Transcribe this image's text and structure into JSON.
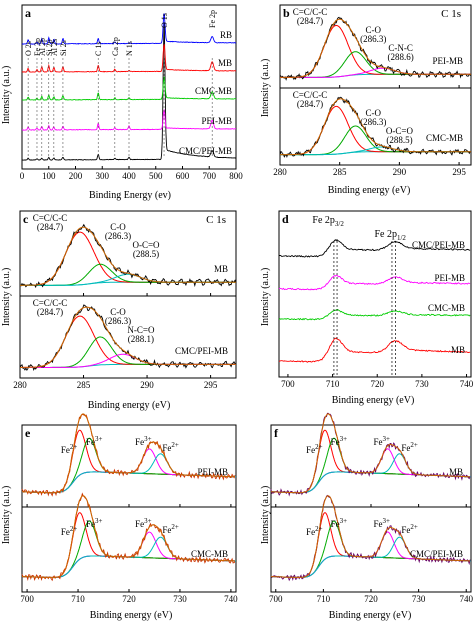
{
  "figure": {
    "axis_labels": {
      "intensity": "Intensity (a.u.)",
      "binding_energy_ev": "Binding Energy (ev)",
      "binding_energy_eV": "Binding energy (eV)"
    }
  },
  "chart_data": [
    {
      "id": "a",
      "panel_label": "a",
      "type": "line",
      "xlabel": "Binding Energy (ev)",
      "ylabel": "Intensity (a.u.)",
      "xlim": [
        0,
        800
      ],
      "xticks": [
        0,
        100,
        200,
        300,
        400,
        500,
        600,
        700,
        800
      ],
      "peak_labels": [
        {
          "x": 531,
          "text": "O 1s"
        },
        {
          "x": 711,
          "text": "Fe 2p"
        },
        {
          "x": 23,
          "text": "O 2s"
        },
        {
          "x": 56,
          "text": "Fe 3p"
        },
        {
          "x": 74,
          "text": "Al 2p"
        },
        {
          "x": 100,
          "text": "Si 2p"
        },
        {
          "x": 119,
          "text": "Al 2s"
        },
        {
          "x": 153,
          "text": "Si 2s"
        },
        {
          "x": 285,
          "text": "C 1s"
        },
        {
          "x": 347,
          "text": "Ca 2p"
        },
        {
          "x": 400,
          "text": "N 1s"
        }
      ],
      "series": [
        {
          "name": "CMC/PEI-MB",
          "color": "#000000",
          "offset": 4,
          "profile": {
            "O 1s": 11,
            "Fe 2p": 0.55,
            "C 1s": 0.45,
            "N 1s": 0.2,
            "Si 2p": 0.2,
            "Si 2s": 0.2,
            "Al 2p": 0.15,
            "Al 2s": 0.15,
            "Ca 2p": 0.1,
            "O 2s": 0.15,
            "Fe 3p": 0.1
          }
        },
        {
          "name": "PEI-MB",
          "color": "#ff00ff",
          "offset": 3,
          "profile": {
            "O 1s": 1.6,
            "Fe 2p": 0.7,
            "C 1s": 0.55,
            "N 1s": 0.3,
            "Si 2p": 0.35,
            "Si 2s": 0.3,
            "Al 2p": 0.3,
            "Al 2s": 0.25,
            "Ca 2p": 0.15,
            "O 2s": 0.25,
            "Fe 3p": 0.15
          }
        },
        {
          "name": "CMC-MB",
          "color": "#00cc00",
          "offset": 2,
          "profile": {
            "O 1s": 1.8,
            "Fe 2p": 0.6,
            "C 1s": 0.6,
            "N 1s": 0.15,
            "Si 2p": 0.4,
            "Si 2s": 0.35,
            "Al 2p": 0.3,
            "Al 2s": 0.25,
            "Ca 2p": 0.15,
            "O 2s": 0.25,
            "Fe 3p": 0.15
          }
        },
        {
          "name": "MB",
          "color": "#ff0000",
          "offset": 1,
          "profile": {
            "O 1s": 2.2,
            "Fe 2p": 0.75,
            "C 1s": 0.55,
            "N 1s": 0.1,
            "Si 2p": 0.55,
            "Si 2s": 0.45,
            "Al 2p": 0.45,
            "Al 2s": 0.4,
            "Ca 2p": 0.2,
            "O 2s": 0.3,
            "Fe 3p": 0.2
          }
        },
        {
          "name": "RB",
          "color": "#0000ff",
          "offset": 0,
          "profile": {
            "O 1s": 2.4,
            "Fe 2p": 0.5,
            "C 1s": 0.45,
            "N 1s": 0.05,
            "Si 2p": 0.5,
            "Si 2s": 0.45,
            "Al 2p": 0.45,
            "Al 2s": 0.4,
            "Ca 2p": 0.15,
            "O 2s": 0.35,
            "Fe 3p": 0.15
          }
        }
      ]
    },
    {
      "id": "b",
      "panel_label": "b",
      "type": "line",
      "element": "C 1s",
      "xlabel": "Binding energy (eV)",
      "ylabel": "Intensity (a.u.)",
      "xlim": [
        280,
        296
      ],
      "xticks": [
        280,
        285,
        290,
        295
      ],
      "subplots": [
        {
          "sample": "PEI-MB",
          "peaks": [
            {
              "pos": 284.7,
              "amp": 1.0,
              "w": 1.0,
              "color": "#ff0000"
            },
            {
              "pos": 286.3,
              "amp": 0.45,
              "w": 0.9,
              "color": "#00aa00"
            },
            {
              "pos": 288.6,
              "amp": 0.12,
              "w": 1.0,
              "color": "#ff00ff"
            }
          ],
          "labels": [
            {
              "text": "C=C/C-C",
              "at": 284.7,
              "row": 1
            },
            {
              "text": "(284.7)",
              "at": 284.7,
              "row": 2
            },
            {
              "text": "C-O",
              "at": 286.3,
              "row": 3
            },
            {
              "text": "(286.3)",
              "at": 286.3,
              "row": 4
            },
            {
              "text": "C-N-C",
              "at": 288.6,
              "row": 5
            },
            {
              "text": "(288.6)",
              "at": 288.6,
              "row": 6
            }
          ]
        },
        {
          "sample": "CMC-MB",
          "peaks": [
            {
              "pos": 284.7,
              "amp": 1.0,
              "w": 1.0,
              "color": "#ff0000"
            },
            {
              "pos": 286.3,
              "amp": 0.55,
              "w": 0.9,
              "color": "#00aa00"
            },
            {
              "pos": 288.5,
              "amp": 0.1,
              "w": 1.0,
              "color": "#00bbbb"
            }
          ],
          "labels": [
            {
              "text": "C=C/C-C",
              "at": 284.7,
              "row": 1
            },
            {
              "text": "(284.7)",
              "at": 284.7,
              "row": 2
            },
            {
              "text": "C-O",
              "at": 286.3,
              "row": 3
            },
            {
              "text": "(286.3)",
              "at": 286.3,
              "row": 4
            },
            {
              "text": "O-C=O",
              "at": 288.5,
              "row": 5
            },
            {
              "text": "(288.5)",
              "at": 288.5,
              "row": 6
            }
          ]
        }
      ]
    },
    {
      "id": "c",
      "panel_label": "c",
      "type": "line",
      "element": "C 1s",
      "xlabel": "Binding energy (eV)",
      "ylabel": "Intensity (a.u.)",
      "xlim": [
        280,
        297
      ],
      "xticks": [
        280,
        285,
        290,
        295
      ],
      "subplots": [
        {
          "sample": "MB",
          "peaks": [
            {
              "pos": 284.7,
              "amp": 1.0,
              "w": 1.1,
              "color": "#ff0000"
            },
            {
              "pos": 286.3,
              "amp": 0.35,
              "w": 0.9,
              "color": "#00aa00"
            },
            {
              "pos": 288.5,
              "amp": 0.15,
              "w": 1.0,
              "color": "#00bbbb"
            }
          ],
          "labels": [
            {
              "text": "C=C/C-C",
              "at": 284.7,
              "row": 1
            },
            {
              "text": "(284.7)",
              "at": 284.7,
              "row": 2
            },
            {
              "text": "C-O",
              "at": 286.3,
              "row": 2
            },
            {
              "text": "(286.3)",
              "at": 286.3,
              "row": 3
            },
            {
              "text": "O-C=O",
              "at": 288.5,
              "row": 4
            },
            {
              "text": "(288.5)",
              "at": 288.5,
              "row": 5
            }
          ]
        },
        {
          "sample": "CMC/PEI-MB",
          "peaks": [
            {
              "pos": 284.7,
              "amp": 1.0,
              "w": 1.1,
              "color": "#ff0000"
            },
            {
              "pos": 286.3,
              "amp": 0.55,
              "w": 0.9,
              "color": "#00aa00"
            },
            {
              "pos": 288.1,
              "amp": 0.2,
              "w": 1.0,
              "color": "#ff00ff"
            }
          ],
          "labels": [
            {
              "text": "C=C/C-C",
              "at": 284.7,
              "row": 1
            },
            {
              "text": "(284.7)",
              "at": 284.7,
              "row": 2
            },
            {
              "text": "C-O",
              "at": 286.3,
              "row": 2
            },
            {
              "text": "(286.3)",
              "at": 286.3,
              "row": 3
            },
            {
              "text": "N-C=O",
              "at": 288.1,
              "row": 4
            },
            {
              "text": "(288.1)",
              "at": 288.1,
              "row": 5
            }
          ]
        }
      ]
    },
    {
      "id": "d",
      "panel_label": "d",
      "type": "line",
      "xlabel": "Binding energy (eV)",
      "ylabel": "Intensity (a.u.)",
      "xlim": [
        698,
        741
      ],
      "xticks": [
        700,
        710,
        720,
        730,
        740
      ],
      "annotations": [
        {
          "text": "Fe 2p",
          "sub": "3/2",
          "x": 710.8
        },
        {
          "text": "Fe 2p",
          "sub": "1/2",
          "x": 723.8
        }
      ],
      "dashed_x": [
        710.3,
        711.0,
        723.3,
        724.1
      ],
      "series": [
        {
          "name": "CMC/PEI-MB",
          "color": "#000000",
          "offset": 3.0,
          "amp": 0.7
        },
        {
          "name": "PEI-MB",
          "color": "#ff00ff",
          "offset": 2.1,
          "amp": 0.6
        },
        {
          "name": "CMC-MB",
          "color": "#00cc00",
          "offset": 1.3,
          "amp": 0.4
        },
        {
          "name": "MB",
          "color": "#ff0000",
          "offset": 0,
          "amp": 1.0
        }
      ]
    },
    {
      "id": "e",
      "panel_label": "e",
      "type": "line",
      "xlabel": "Binding energy (eV)",
      "ylabel": "Intensity (a.u.)",
      "xlim": [
        699,
        741
      ],
      "xticks": [
        700,
        710,
        720,
        730,
        740
      ],
      "subplots": [
        {
          "sample": "PEI-MB",
          "peaks": [
            {
              "pos": 710.2,
              "label": "Fe2+",
              "color": "#ff0000"
            },
            {
              "pos": 712.2,
              "label": "Fe3+",
              "color": "#00aa00"
            },
            {
              "pos": 724.0,
              "label": "Fe3+",
              "color": "#ff00ff"
            },
            {
              "pos": 726.2,
              "label": "Fe2+",
              "color": "#00bbbb"
            }
          ]
        },
        {
          "sample": "CMC-MB",
          "peaks": [
            {
              "pos": 710.2,
              "label": "Fe2+",
              "color": "#ff0000"
            },
            {
              "pos": 712.2,
              "label": "Fe3+",
              "color": "#00aa00"
            },
            {
              "pos": 724.0,
              "label": "Fe3+",
              "color": "#ff00ff"
            },
            {
              "pos": 726.2,
              "label": "Fe2+",
              "color": "#00bbbb"
            }
          ]
        }
      ]
    },
    {
      "id": "f",
      "panel_label": "f",
      "type": "line",
      "xlabel": "Binding energy (eV)",
      "ylabel": "Intensity (a.u.)",
      "xlim": [
        699,
        741
      ],
      "xticks": [
        700,
        710,
        720,
        730,
        740
      ],
      "subplots": [
        {
          "sample": "MB",
          "peaks": [
            {
              "pos": 710.2,
              "label": "Fe2+",
              "color": "#ff0000"
            },
            {
              "pos": 712.2,
              "label": "Fe3+",
              "color": "#00aa00"
            },
            {
              "pos": 723.5,
              "label": "Fe3+",
              "color": "#ff00ff"
            },
            {
              "pos": 726.0,
              "label": "Fe2+",
              "color": "#00bbbb"
            }
          ]
        },
        {
          "sample": "CMC/PEI-MB",
          "peaks": [
            {
              "pos": 710.2,
              "label": "Fe2+",
              "color": "#ff0000"
            },
            {
              "pos": 712.2,
              "label": "Fe3+",
              "color": "#00aa00"
            },
            {
              "pos": 723.5,
              "label": "Fe3+",
              "color": "#ff00ff"
            },
            {
              "pos": 726.0,
              "label": "Fe2+",
              "color": "#00bbbb"
            }
          ]
        }
      ]
    }
  ]
}
